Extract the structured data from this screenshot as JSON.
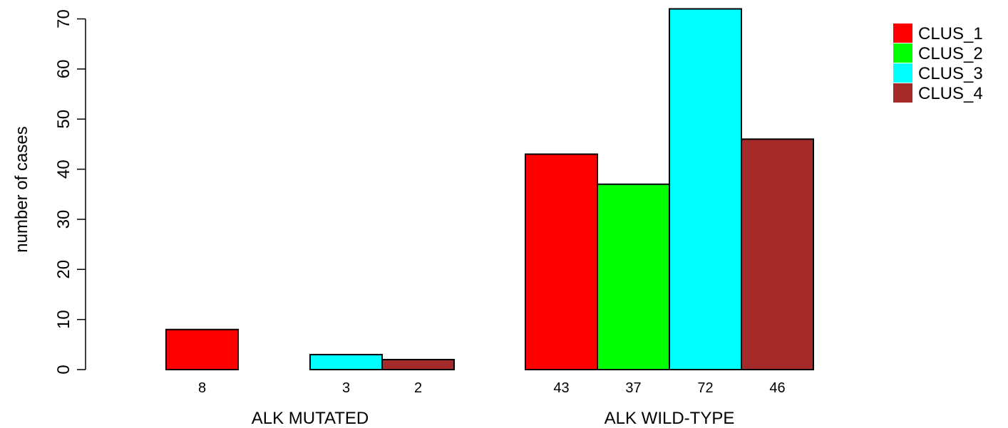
{
  "chart_data": {
    "type": "bar",
    "groups": [
      "ALK MUTATED",
      "ALK WILD-TYPE"
    ],
    "series": [
      {
        "name": "CLUS_1",
        "color": "#ff0000",
        "values": [
          8,
          43
        ]
      },
      {
        "name": "CLUS_2",
        "color": "#00ff00",
        "values": [
          0,
          37
        ]
      },
      {
        "name": "CLUS_3",
        "color": "#00ffff",
        "values": [
          3,
          72
        ]
      },
      {
        "name": "CLUS_4",
        "color": "#a52a2a",
        "values": [
          2,
          46
        ]
      }
    ],
    "value_labels": [
      [
        "8",
        "",
        "3",
        "2"
      ],
      [
        "43",
        "37",
        "72",
        "46"
      ]
    ],
    "ylabel": "number of cases",
    "ylim": [
      0,
      72
    ],
    "yticks": [
      0,
      10,
      20,
      30,
      40,
      50,
      60,
      70
    ],
    "grid": false,
    "legend_position": "top-right"
  }
}
